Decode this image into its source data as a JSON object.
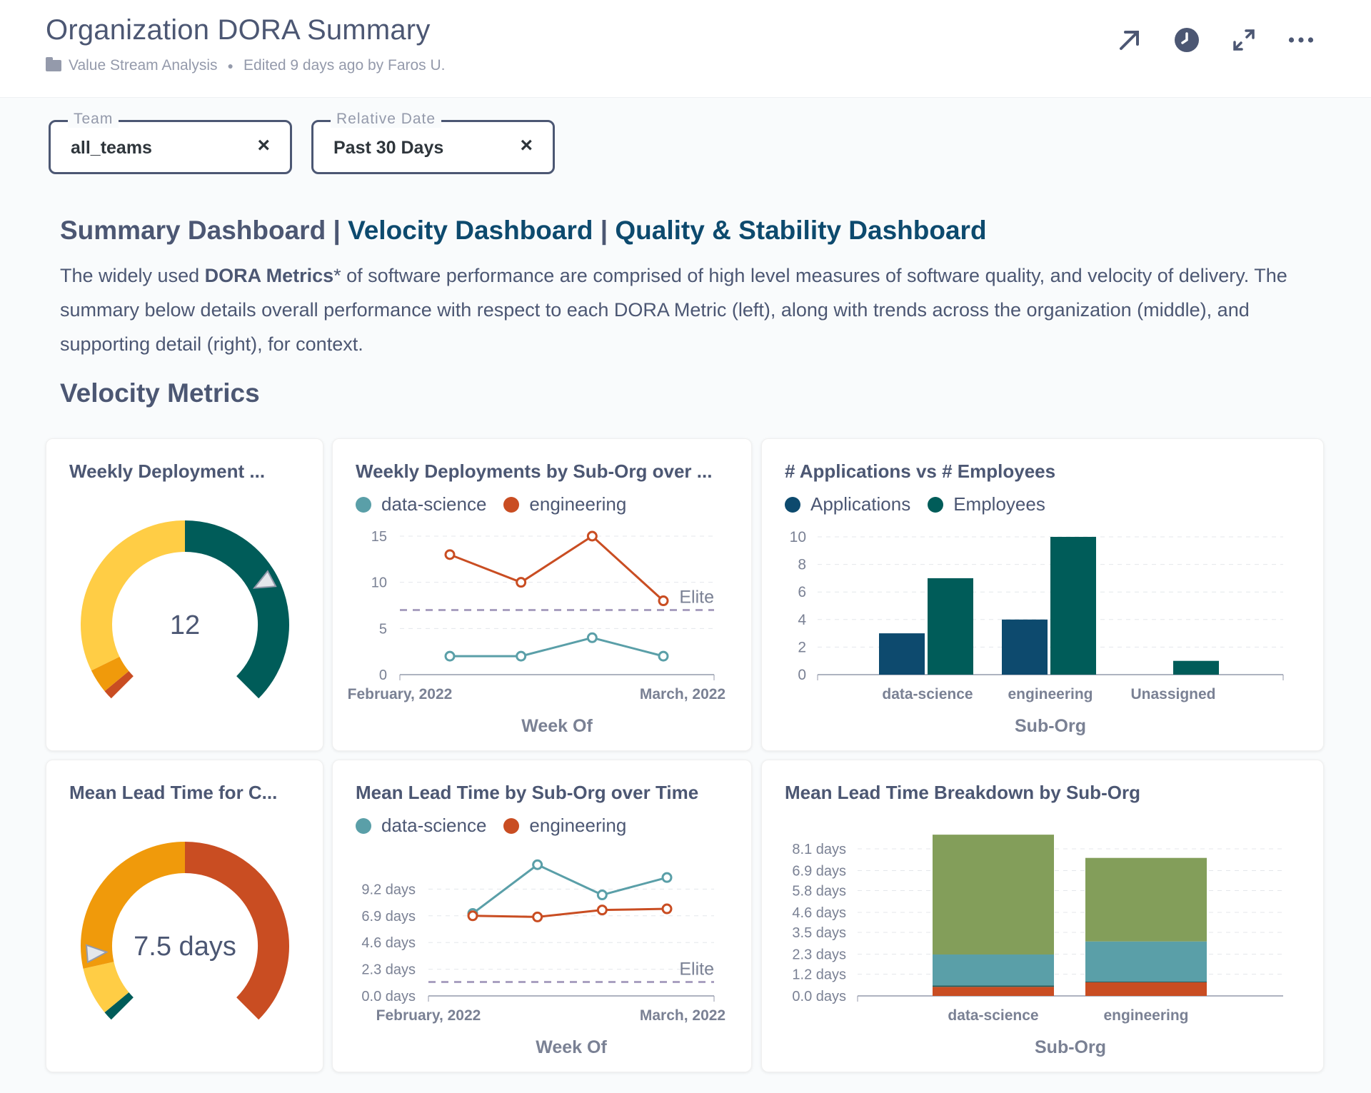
{
  "header": {
    "title": "Organization DORA Summary",
    "collection": "Value Stream Analysis",
    "edited": "Edited 9 days ago by Faros U.",
    "icons": [
      "arrow-up-right-icon",
      "clock-icon",
      "expand-icon",
      "more-icon"
    ]
  },
  "filters": [
    {
      "label": "Team",
      "value": "all_teams"
    },
    {
      "label": "Relative Date",
      "value": "Past 30 Days"
    }
  ],
  "dashboards": {
    "summary": "Summary Dashboard",
    "velocity": "Velocity Dashboard",
    "quality": "Quality & Stability Dashboard",
    "sep": "|"
  },
  "description": {
    "p1": "The widely used ",
    "bold": "DORA Metrics",
    "p2": "* of software performance are comprised of high level measures of software quality, and velocity of delivery. The summary below details overall performance with respect to each DORA Metric (left), along with trends across the organization (middle), and supporting detail (right), for context."
  },
  "section_title": "Velocity Metrics",
  "colors": {
    "data_science": "#5a9fa8",
    "engineering": "#c94d22",
    "applications": "#0d4a6e",
    "employees": "#005c59",
    "green": "#839e5a",
    "yellow": "#ffcd45",
    "orange": "#f09a0b"
  },
  "cards": {
    "gauge1": {
      "title": "Weekly Deployment ...",
      "value": "12"
    },
    "line1": {
      "title": "Weekly Deployments by Sub-Org over ...",
      "legend": [
        "data-science",
        "engineering"
      ],
      "elite": "Elite"
    },
    "bar1": {
      "title": "# Applications vs # Employees",
      "legend": [
        "Applications",
        "Employees"
      ]
    },
    "gauge2": {
      "title": "Mean Lead Time for C...",
      "value": "7.5 days"
    },
    "line2": {
      "title": "Mean Lead Time by Sub-Org over Time",
      "legend": [
        "data-science",
        "engineering"
      ],
      "elite": "Elite"
    },
    "bar2": {
      "title": "Mean Lead Time Breakdown by Sub-Org"
    }
  },
  "chart_data": [
    {
      "type": "gauge",
      "title": "Weekly Deployment ...",
      "value": 12,
      "segments": [
        {
          "color": "#c94d22",
          "frac": 0.02
        },
        {
          "color": "#f09a0b",
          "frac": 0.05
        },
        {
          "color": "#ffcd45",
          "frac": 0.43
        },
        {
          "color": "#005c59",
          "frac": 0.5
        }
      ],
      "marker_frac": 0.73
    },
    {
      "type": "line",
      "title": "Weekly Deployments by Sub-Org over ...",
      "xlabel": "Week Of",
      "xtick_labels": [
        "February, 2022",
        "March, 2022"
      ],
      "ylim": [
        0,
        15
      ],
      "yticks": [
        0,
        5,
        10,
        15
      ],
      "x": [
        0,
        1,
        2,
        3
      ],
      "series": [
        {
          "name": "data-science",
          "values": [
            2,
            2,
            4,
            2
          ]
        },
        {
          "name": "engineering",
          "values": [
            13,
            10,
            15,
            8
          ]
        }
      ],
      "reference_line": {
        "label": "Elite",
        "value": 7
      }
    },
    {
      "type": "bar",
      "title": "# Applications vs # Employees",
      "xlabel": "Sub-Org",
      "categories": [
        "data-science",
        "engineering",
        "Unassigned"
      ],
      "ylim": [
        0,
        10
      ],
      "yticks": [
        0,
        2,
        4,
        6,
        8,
        10
      ],
      "series": [
        {
          "name": "Applications",
          "values": [
            3,
            4,
            0
          ]
        },
        {
          "name": "Employees",
          "values": [
            7,
            10,
            1
          ]
        }
      ]
    },
    {
      "type": "gauge",
      "title": "Mean Lead Time for C...",
      "value": "7.5 days",
      "segments": [
        {
          "color": "#005c59",
          "frac": 0.02
        },
        {
          "color": "#ffcd45",
          "frac": 0.1
        },
        {
          "color": "#f09a0b",
          "frac": 0.38
        },
        {
          "color": "#c94d22",
          "frac": 0.5
        }
      ],
      "marker_frac": 0.15
    },
    {
      "type": "line",
      "title": "Mean Lead Time by Sub-Org over Time",
      "xlabel": "Week Of",
      "xtick_labels": [
        "February, 2022",
        "March, 2022"
      ],
      "ylim": [
        0,
        11.5
      ],
      "yticks": [
        0,
        2.3,
        4.6,
        6.9,
        9.2
      ],
      "ytick_labels": [
        "0.0 days",
        "2.3 days",
        "4.6 days",
        "6.9 days",
        "9.2 days"
      ],
      "x": [
        0,
        1,
        2,
        3
      ],
      "series": [
        {
          "name": "data-science",
          "values": [
            7.1,
            11.3,
            8.7,
            10.2
          ]
        },
        {
          "name": "engineering",
          "values": [
            6.9,
            6.8,
            7.4,
            7.5
          ]
        }
      ],
      "reference_line": {
        "label": "Elite",
        "value": 1.2
      }
    },
    {
      "type": "bar",
      "stacked": true,
      "title": "Mean Lead Time Breakdown by Sub-Org",
      "xlabel": "Sub-Org",
      "categories": [
        "data-science",
        "engineering"
      ],
      "ylim": [
        0,
        9.2
      ],
      "yticks": [
        0,
        1.2,
        2.3,
        3.5,
        4.6,
        5.8,
        6.9,
        8.1
      ],
      "ytick_labels": [
        "0.0 days",
        "1.2 days",
        "2.3 days",
        "3.5 days",
        "4.6 days",
        "5.8 days",
        "6.9 days",
        "8.1 days"
      ],
      "series": [
        {
          "color": "#c94d22",
          "values": [
            0.5,
            0.75
          ]
        },
        {
          "color": "#1e5a5c",
          "values": [
            0.08,
            0.05
          ]
        },
        {
          "color": "#5a9fa8",
          "values": [
            1.7,
            2.2
          ]
        },
        {
          "color": "#839e5a",
          "values": [
            6.6,
            4.6
          ]
        }
      ]
    }
  ]
}
